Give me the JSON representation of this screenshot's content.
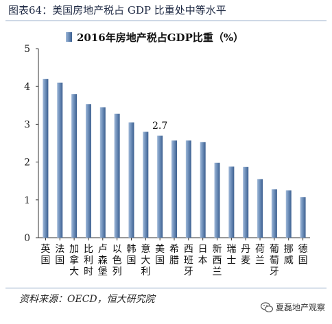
{
  "figure_title": "图表64：美国房地产税占 GDP 比重处中等水平",
  "source": "资料来源：OECD，恒大研究院",
  "watermark": "夏磊地产观察",
  "colors": {
    "bar_light": "#9fb8d8",
    "bar_dark": "#3d6090",
    "axis": "#333333",
    "rule": "#8aa3c2"
  },
  "chart_data": {
    "type": "bar",
    "legend": "2016年房地产税占GDP比重（%）",
    "legend_position": "top-left",
    "categories": [
      "英国",
      "法国",
      "加拿大",
      "比利时",
      "卢森堡",
      "以色列",
      "韩国",
      "意大利",
      "美国",
      "希腊",
      "西班牙",
      "日本",
      "新西兰",
      "瑞士",
      "丹麦",
      "荷兰",
      "葡萄牙",
      "挪威",
      "德国"
    ],
    "values": [
      4.2,
      4.1,
      3.8,
      3.53,
      3.45,
      3.28,
      3.05,
      2.8,
      2.7,
      2.57,
      2.57,
      2.53,
      1.98,
      1.88,
      1.87,
      1.55,
      1.28,
      1.25,
      1.07
    ],
    "data_labels": [
      {
        "category": "美国",
        "text": "2.7"
      }
    ],
    "ylim": [
      0,
      5
    ],
    "yticks": [
      "0",
      "1",
      "2",
      "3",
      "4",
      "5"
    ],
    "grid": false
  }
}
